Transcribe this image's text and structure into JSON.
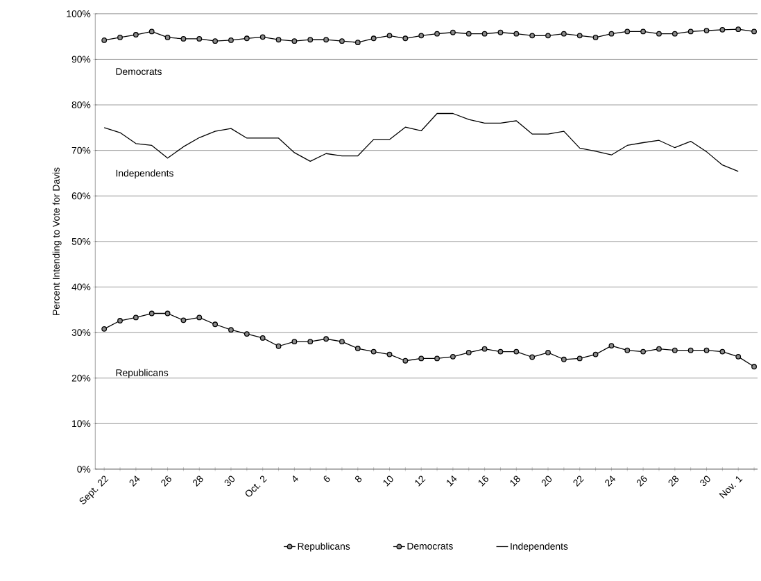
{
  "chart_data": {
    "type": "line",
    "ylabel": "Percent Intending to Vote for Davis",
    "categories": [
      "Sept. 22",
      null,
      "24",
      null,
      "26",
      null,
      "28",
      null,
      "30",
      null,
      "Oct. 2",
      null,
      "4",
      null,
      "6",
      null,
      "8",
      null,
      "10",
      null,
      "12",
      null,
      "14",
      null,
      "16",
      null,
      "18",
      null,
      "20",
      null,
      "22",
      null,
      "24",
      null,
      "26",
      null,
      "28",
      null,
      "30",
      null,
      "Nov. 1",
      null
    ],
    "series": [
      {
        "name": "Republicans",
        "color": "#000000",
        "marker": "circle",
        "values": [
          30.8,
          32.6,
          33.3,
          34.2,
          34.2,
          32.7,
          33.3,
          31.8,
          30.6,
          29.7,
          28.8,
          27.0,
          28.0,
          28.0,
          28.6,
          28.0,
          26.5,
          25.8,
          25.2,
          23.8,
          24.3,
          24.3,
          24.7,
          25.6,
          26.4,
          25.8,
          25.8,
          24.6,
          25.6,
          24.1,
          24.3,
          25.2,
          27.1,
          26.1,
          25.8,
          26.4,
          26.1,
          26.1,
          26.1,
          25.8,
          24.7,
          22.5
        ]
      },
      {
        "name": "Democrats",
        "color": "#000000",
        "marker": "circle",
        "values": [
          94.2,
          94.8,
          95.4,
          96.1,
          94.8,
          94.5,
          94.5,
          94.0,
          94.2,
          94.6,
          94.9,
          94.3,
          94.0,
          94.3,
          94.3,
          94.0,
          93.7,
          94.6,
          95.2,
          94.6,
          95.2,
          95.6,
          95.9,
          95.6,
          95.6,
          95.9,
          95.6,
          95.2,
          95.2,
          95.6,
          95.2,
          94.8,
          95.6,
          96.1,
          96.1,
          95.6,
          95.6,
          96.1,
          96.3,
          96.5,
          96.6,
          96.1
        ]
      },
      {
        "name": "Independents",
        "color": "#000000",
        "marker": "none",
        "values": [
          75.0,
          73.9,
          71.5,
          71.1,
          68.3,
          70.8,
          72.8,
          74.2,
          74.8,
          72.7,
          72.7,
          72.7,
          69.5,
          67.6,
          69.3,
          68.8,
          68.8,
          72.4,
          72.4,
          75.1,
          74.3,
          78.1,
          78.1,
          76.8,
          76.0,
          76.0,
          76.5,
          73.6,
          73.6,
          74.2,
          70.5,
          69.8,
          69.0,
          71.1,
          71.7,
          72.2,
          70.6,
          72.0,
          69.7,
          66.8,
          65.4,
          null
        ]
      }
    ],
    "annotations": [
      "Democrats",
      "Independents",
      "Republicans"
    ],
    "ylim": [
      0,
      100
    ],
    "yticks": [
      {
        "value": 0,
        "label": "0%"
      },
      {
        "value": 10,
        "label": "10%"
      },
      {
        "value": 20,
        "label": "20%"
      },
      {
        "value": 30,
        "label": "30%"
      },
      {
        "value": 40,
        "label": "40%"
      },
      {
        "value": 50,
        "label": "50%"
      },
      {
        "value": 60,
        "label": "60%"
      },
      {
        "value": 70,
        "label": "70%"
      },
      {
        "value": 80,
        "label": "80%"
      },
      {
        "value": 90,
        "label": "90%"
      },
      {
        "value": 100,
        "label": "100%"
      }
    ],
    "grid": "y",
    "legend": "bottom",
    "line_style": "solid"
  }
}
